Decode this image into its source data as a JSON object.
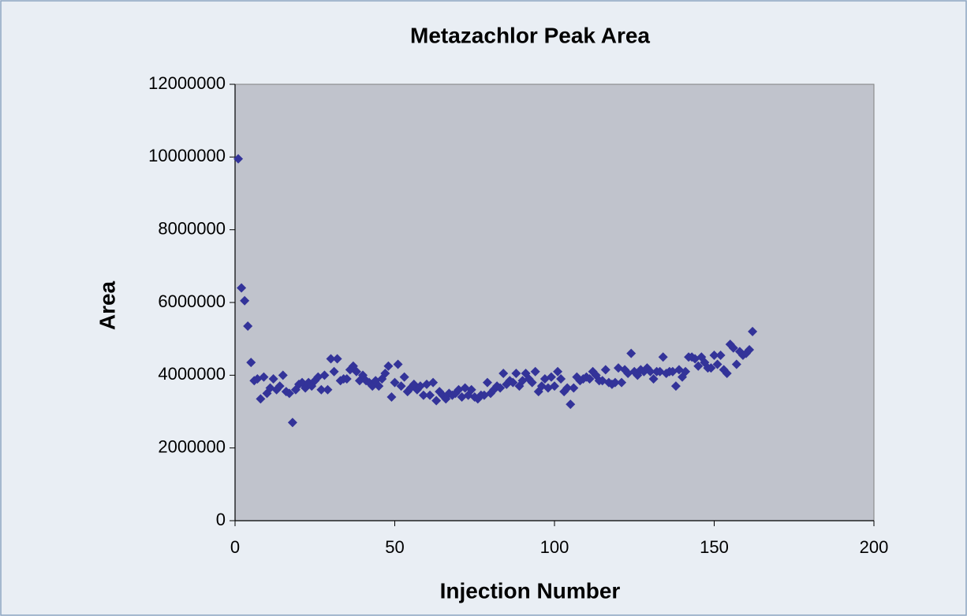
{
  "chart_data": {
    "type": "scatter",
    "title": "Metazachlor Peak Area",
    "x_label": "Injection Number",
    "y_label": "Area",
    "series": [
      {
        "name": "Metazachlor",
        "color": "#333399",
        "x": [
          1,
          2,
          3,
          4,
          5,
          6,
          7,
          8,
          9,
          10,
          11,
          12,
          13,
          14,
          15,
          16,
          17,
          18,
          19,
          20,
          21,
          22,
          23,
          24,
          25,
          26,
          27,
          28,
          29,
          30,
          31,
          32,
          33,
          34,
          35,
          36,
          37,
          38,
          39,
          40,
          41,
          42,
          43,
          44,
          45,
          46,
          47,
          48,
          49,
          50,
          51,
          52,
          53,
          54,
          55,
          56,
          57,
          58,
          59,
          60,
          61,
          62,
          63,
          64,
          65,
          66,
          67,
          68,
          69,
          70,
          71,
          72,
          73,
          74,
          75,
          76,
          77,
          78,
          79,
          80,
          81,
          82,
          83,
          84,
          85,
          86,
          87,
          88,
          89,
          90,
          91,
          92,
          93,
          94,
          95,
          96,
          97,
          98,
          99,
          100,
          101,
          102,
          103,
          104,
          105,
          106,
          107,
          108,
          109,
          110,
          111,
          112,
          113,
          114,
          115,
          116,
          117,
          118,
          119,
          120,
          121,
          122,
          123,
          124,
          125,
          126,
          127,
          128,
          129,
          130,
          131,
          132,
          133,
          134,
          135,
          136,
          137,
          138,
          139,
          140,
          141,
          142,
          143,
          144,
          145,
          146,
          147,
          148,
          149,
          150,
          151,
          152,
          153,
          154,
          155,
          156,
          157,
          158,
          159,
          160,
          161,
          162
        ],
        "values": [
          9950000,
          6400000,
          6050000,
          5350000,
          4350000,
          3850000,
          3900000,
          3350000,
          3950000,
          3500000,
          3650000,
          3900000,
          3600000,
          3700000,
          4000000,
          3550000,
          3500000,
          2700000,
          3600000,
          3750000,
          3800000,
          3650000,
          3800000,
          3700000,
          3850000,
          3950000,
          3600000,
          4000000,
          3600000,
          4450000,
          4100000,
          4450000,
          3850000,
          3900000,
          3900000,
          4150000,
          4250000,
          4100000,
          3850000,
          4000000,
          3850000,
          3800000,
          3700000,
          3850000,
          3700000,
          3900000,
          4050000,
          4250000,
          3400000,
          3800000,
          4300000,
          3700000,
          3950000,
          3550000,
          3650000,
          3750000,
          3600000,
          3700000,
          3450000,
          3750000,
          3450000,
          3800000,
          3300000,
          3550000,
          3450000,
          3350000,
          3500000,
          3450000,
          3500000,
          3600000,
          3400000,
          3650000,
          3450000,
          3600000,
          3400000,
          3350000,
          3450000,
          3450000,
          3800000,
          3500000,
          3600000,
          3700000,
          3650000,
          4050000,
          3750000,
          3850000,
          3800000,
          4050000,
          3700000,
          3850000,
          4050000,
          3900000,
          3800000,
          4100000,
          3550000,
          3700000,
          3900000,
          3650000,
          3950000,
          3700000,
          4100000,
          3900000,
          3550000,
          3650000,
          3200000,
          3650000,
          3950000,
          3850000,
          3900000,
          3950000,
          3900000,
          4100000,
          4000000,
          3850000,
          3850000,
          4150000,
          3800000,
          3750000,
          3800000,
          4200000,
          3800000,
          4150000,
          4050000,
          4600000,
          4100000,
          4000000,
          4150000,
          4100000,
          4200000,
          4100000,
          3900000,
          4100000,
          4100000,
          4500000,
          4050000,
          4100000,
          4100000,
          3700000,
          4150000,
          3950000,
          4100000,
          4500000,
          4500000,
          4450000,
          4250000,
          4500000,
          4350000,
          4200000,
          4200000,
          4550000,
          4300000,
          4550000,
          4150000,
          4050000,
          4850000,
          4750000,
          4300000,
          4650000,
          4550000,
          4600000,
          4700000,
          5200000
        ]
      }
    ],
    "xlim": [
      0,
      200
    ],
    "xticks": [
      0,
      50,
      100,
      150,
      200
    ],
    "ylim": [
      0,
      12000000
    ],
    "yticks": [
      0,
      2000000,
      4000000,
      6000000,
      8000000,
      10000000,
      12000000
    ],
    "grid": false,
    "plot_background": "#c0c3cc"
  }
}
